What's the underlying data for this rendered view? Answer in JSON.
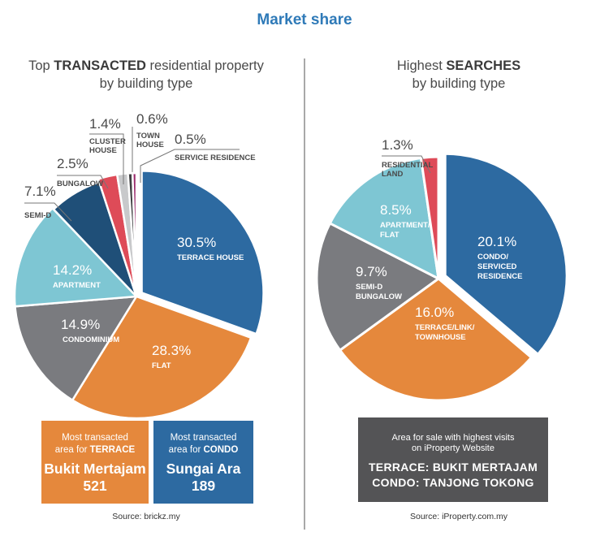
{
  "title": "Market share",
  "left_panel": {
    "subtitle_pre": "Top ",
    "subtitle_bold": "TRANSACTED",
    "subtitle_post": " residential property",
    "subtitle_line2": "by building type",
    "box_terrace": {
      "line1": "Most transacted",
      "line2_pre": "area for ",
      "line2_bold": "TERRACE",
      "area": "Bukit Mertajam",
      "count": "521",
      "color": "#e5883c"
    },
    "box_condo": {
      "line1": "Most transacted",
      "line2_pre": "area for ",
      "line2_bold": "CONDO",
      "area": "Sungai Ara",
      "count": "189",
      "color": "#2d6aa1"
    },
    "source": "Source: brickz.my"
  },
  "right_panel": {
    "subtitle_pre": "Highest ",
    "subtitle_bold": "SEARCHES",
    "subtitle_line2": "by building type",
    "box": {
      "line1": "Area for sale with highest visits",
      "line2": "on iProperty Website",
      "line3": "TERRACE: BUKIT MERTAJAM",
      "line4": "CONDO: TANJONG TOKONG",
      "color": "#545456"
    },
    "source": "Source: iProperty.com.my"
  },
  "chart_data": [
    {
      "type": "pie",
      "title": "Top TRANSACTED residential property by building type",
      "unit": "%",
      "slices": [
        {
          "label": "TERRACE HOUSE",
          "value": 30.5,
          "display": "30.5%",
          "color": "#2d6aa1",
          "exploded": true,
          "label_inside": true
        },
        {
          "label": "FLAT",
          "value": 28.3,
          "display": "28.3%",
          "color": "#e5883c",
          "label_inside": true
        },
        {
          "label": "CONDOMINIUM",
          "value": 14.9,
          "display": "14.9%",
          "color": "#7a7b7f",
          "label_inside": true
        },
        {
          "label": "APARTMENT",
          "value": 14.2,
          "display": "14.2%",
          "color": "#7ec6d3",
          "label_inside": true
        },
        {
          "label": "SEMI-D",
          "value": 7.1,
          "display": "7.1%",
          "color": "#1f4f78",
          "label_inside": false
        },
        {
          "label": "BUNGALOW",
          "value": 2.5,
          "display": "2.5%",
          "color": "#de4b58",
          "label_inside": false
        },
        {
          "label": "CLUSTER HOUSE",
          "value": 1.4,
          "display": "1.4%",
          "color": "#c8c9cb",
          "label_inside": false
        },
        {
          "label": "TOWN HOUSE",
          "value": 0.6,
          "display": "0.6%",
          "color": "#404042",
          "label_inside": false
        },
        {
          "label": "SERVICE RESIDENCE",
          "value": 0.5,
          "display": "0.5%",
          "color": "#9b2a6c",
          "label_inside": false
        }
      ]
    },
    {
      "type": "pie",
      "title": "Highest SEARCHES by building type",
      "unit": "%",
      "slices": [
        {
          "label": "CONDO/ SERVICED RESIDENCE",
          "value": 20.1,
          "display": "20.1%",
          "color": "#2d6aa1",
          "exploded": true,
          "label_inside": true
        },
        {
          "label": "TERRACE/LINK/ TOWNHOUSE",
          "value": 16.0,
          "display": "16.0%",
          "color": "#e5883c",
          "label_inside": true
        },
        {
          "label": "SEMI-D BUNGALOW",
          "value": 9.7,
          "display": "9.7%",
          "color": "#7a7b7f",
          "label_inside": true
        },
        {
          "label": "APARTMENT/ FLAT",
          "value": 8.5,
          "display": "8.5%",
          "color": "#7ec6d3",
          "label_inside": true
        },
        {
          "label": "RESIDENTIAL LAND",
          "value": 1.3,
          "display": "1.3%",
          "color": "#de4b58",
          "label_inside": false
        }
      ]
    }
  ]
}
